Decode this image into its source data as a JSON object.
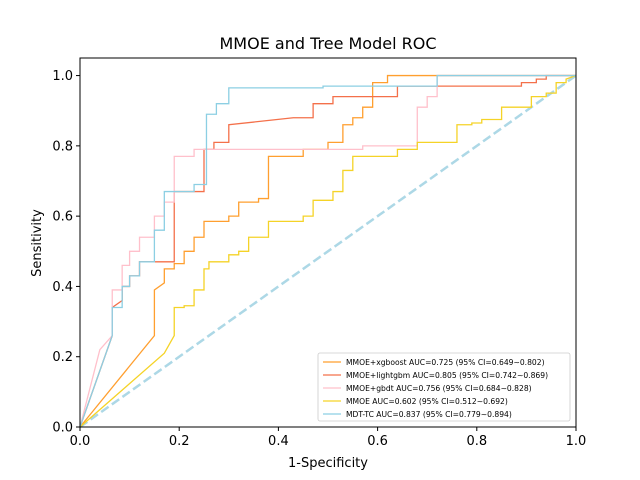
{
  "chart_data": {
    "type": "line",
    "title": "MMOE and Tree Model ROC",
    "xlabel": "1-Specificity",
    "ylabel": "Sensitivity",
    "xlim": [
      0.0,
      1.0
    ],
    "ylim": [
      0.0,
      1.05
    ],
    "xticks": [
      "0.0",
      "0.2",
      "0.4",
      "0.6",
      "0.8",
      "1.0"
    ],
    "yticks": [
      "0.0",
      "0.2",
      "0.4",
      "0.6",
      "0.8",
      "1.0"
    ],
    "grid": false,
    "legend_position": "lower-right",
    "series": [
      {
        "name": "MMOE+xgboost AUC=0.725 (95% CI=0.649~0.802)",
        "color": "#ff9f2f",
        "x": [
          0,
          0.15,
          0.15,
          0.17,
          0.17,
          0.19,
          0.19,
          0.21,
          0.21,
          0.23,
          0.23,
          0.25,
          0.25,
          0.3,
          0.3,
          0.32,
          0.32,
          0.36,
          0.36,
          0.38,
          0.38,
          0.45,
          0.45,
          0.5,
          0.5,
          0.53,
          0.53,
          0.55,
          0.55,
          0.57,
          0.57,
          0.59,
          0.59,
          0.62,
          0.62,
          0.64,
          0.64,
          0.72,
          0.72,
          1.0
        ],
        "y": [
          0,
          0.26,
          0.39,
          0.41,
          0.45,
          0.45,
          0.465,
          0.465,
          0.5,
          0.5,
          0.54,
          0.54,
          0.585,
          0.585,
          0.6,
          0.6,
          0.64,
          0.64,
          0.65,
          0.65,
          0.77,
          0.77,
          0.79,
          0.79,
          0.81,
          0.81,
          0.86,
          0.86,
          0.88,
          0.88,
          0.91,
          0.91,
          0.98,
          0.98,
          1.0,
          1.0,
          1.0,
          1.0,
          1.0,
          1.0
        ]
      },
      {
        "name": "MMOE+lightgbm AUC=0.805 (95% CI=0.742~0.869)",
        "color": "#f4704a",
        "x": [
          0,
          0.065,
          0.065,
          0.085,
          0.085,
          0.1,
          0.1,
          0.12,
          0.12,
          0.19,
          0.19,
          0.25,
          0.25,
          0.27,
          0.27,
          0.3,
          0.3,
          0.43,
          0.43,
          0.47,
          0.47,
          0.51,
          0.51,
          0.57,
          0.57,
          0.62,
          0.62,
          0.64,
          0.64,
          0.89,
          0.89,
          0.92,
          0.92,
          0.94,
          0.94,
          1.0
        ],
        "y": [
          0,
          0.26,
          0.34,
          0.36,
          0.4,
          0.4,
          0.43,
          0.43,
          0.47,
          0.47,
          0.67,
          0.67,
          0.79,
          0.79,
          0.81,
          0.81,
          0.86,
          0.88,
          0.88,
          0.88,
          0.92,
          0.92,
          0.94,
          0.94,
          0.94,
          0.94,
          0.94,
          0.94,
          0.97,
          0.97,
          0.98,
          0.98,
          0.99,
          0.99,
          1.0,
          1.0
        ]
      },
      {
        "name": "MMOE+gbdt AUC=0.756 (95% CI=0.684~0.828)",
        "color": "#ffc0cb",
        "x": [
          0,
          0.04,
          0.065,
          0.065,
          0.085,
          0.085,
          0.1,
          0.1,
          0.12,
          0.12,
          0.15,
          0.15,
          0.17,
          0.17,
          0.19,
          0.19,
          0.23,
          0.23,
          0.57,
          0.57,
          0.68,
          0.68,
          0.7,
          0.7,
          0.72,
          0.72,
          1.0
        ],
        "y": [
          0,
          0.22,
          0.26,
          0.39,
          0.39,
          0.46,
          0.46,
          0.5,
          0.5,
          0.54,
          0.54,
          0.6,
          0.6,
          0.64,
          0.64,
          0.77,
          0.77,
          0.79,
          0.79,
          0.8,
          0.8,
          0.91,
          0.91,
          0.94,
          0.94,
          1.0,
          1.0
        ]
      },
      {
        "name": "MMOE AUC=0.602 (95% CI=0.512~0.692)",
        "color": "#f5d327",
        "x": [
          0,
          0.17,
          0.19,
          0.19,
          0.21,
          0.21,
          0.23,
          0.23,
          0.25,
          0.25,
          0.26,
          0.26,
          0.3,
          0.3,
          0.32,
          0.32,
          0.34,
          0.34,
          0.38,
          0.38,
          0.45,
          0.45,
          0.47,
          0.47,
          0.51,
          0.51,
          0.53,
          0.53,
          0.55,
          0.55,
          0.57,
          0.57,
          0.64,
          0.64,
          0.68,
          0.68,
          0.72,
          0.72,
          0.76,
          0.76,
          0.79,
          0.79,
          0.81,
          0.81,
          0.85,
          0.85,
          0.89,
          0.89,
          0.91,
          0.91,
          0.94,
          0.94,
          0.96,
          0.96,
          0.98,
          0.98,
          1.0
        ],
        "y": [
          0,
          0.21,
          0.26,
          0.34,
          0.34,
          0.345,
          0.345,
          0.39,
          0.39,
          0.45,
          0.45,
          0.47,
          0.47,
          0.49,
          0.49,
          0.5,
          0.5,
          0.54,
          0.54,
          0.585,
          0.585,
          0.6,
          0.6,
          0.645,
          0.645,
          0.67,
          0.67,
          0.73,
          0.73,
          0.77,
          0.77,
          0.77,
          0.77,
          0.79,
          0.79,
          0.81,
          0.81,
          0.81,
          0.81,
          0.86,
          0.86,
          0.865,
          0.865,
          0.875,
          0.875,
          0.91,
          0.91,
          0.91,
          0.91,
          0.94,
          0.94,
          0.95,
          0.95,
          0.98,
          0.98,
          0.99,
          1.0
        ]
      },
      {
        "name": "MDT-TC AUC=0.837 (95% CI=0.779~0.894)",
        "color": "#8ccfe3",
        "x": [
          0,
          0.065,
          0.065,
          0.085,
          0.085,
          0.1,
          0.1,
          0.12,
          0.12,
          0.15,
          0.15,
          0.17,
          0.17,
          0.19,
          0.19,
          0.23,
          0.23,
          0.255,
          0.255,
          0.275,
          0.275,
          0.3,
          0.3,
          0.49,
          0.49,
          0.72,
          0.72,
          1.0
        ],
        "y": [
          0,
          0.26,
          0.34,
          0.34,
          0.4,
          0.4,
          0.43,
          0.43,
          0.47,
          0.47,
          0.56,
          0.56,
          0.67,
          0.67,
          0.67,
          0.67,
          0.69,
          0.69,
          0.89,
          0.89,
          0.92,
          0.92,
          0.965,
          0.965,
          0.97,
          0.97,
          1.0,
          1.0
        ]
      }
    ],
    "reference_line": {
      "color": "#add8e6",
      "x": [
        0,
        1.0
      ],
      "y": [
        0,
        1.0
      ]
    }
  }
}
